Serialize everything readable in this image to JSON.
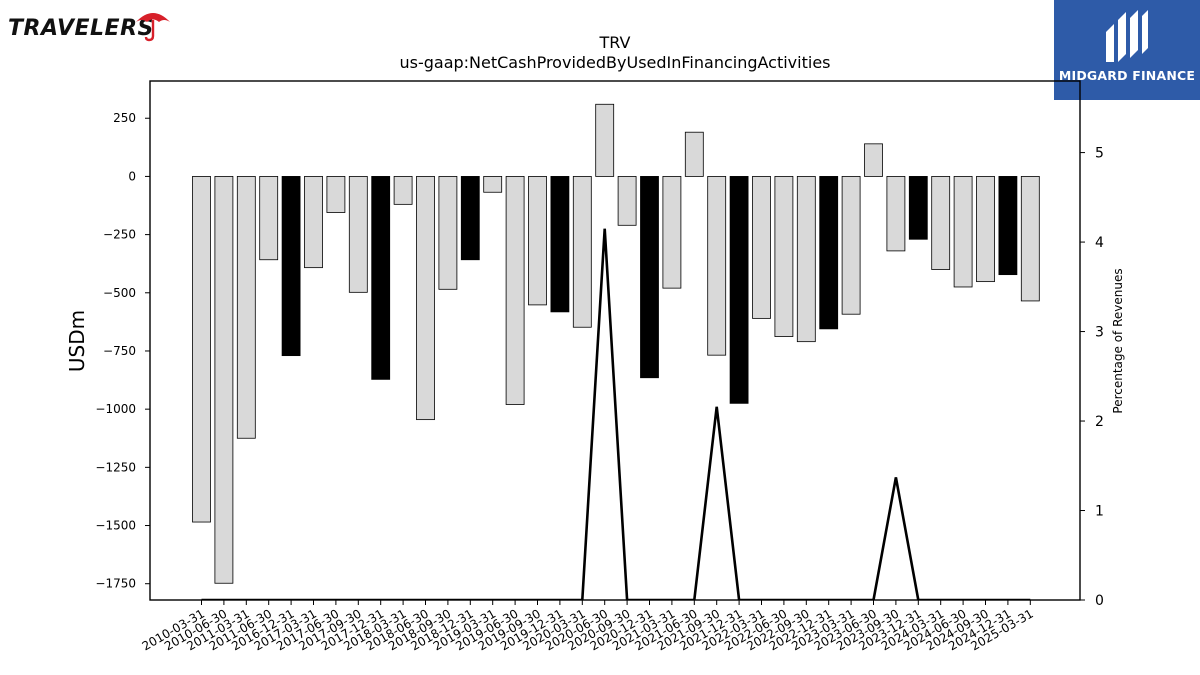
{
  "brand": {
    "left_logo_text": "TRAVELERS",
    "left_logo_icon": "umbrella-icon",
    "right_logo_text": "MIDGARD FINANCE",
    "right_logo_icon": "midgard-monogram-icon",
    "left_logo_accent": "#d7202a",
    "right_logo_bg": "#2e5ba8"
  },
  "chart_data": {
    "type": "bar",
    "title": "TRV",
    "subtitle": "us-gaap:NetCashProvidedByUsedInFinancingActivities",
    "ylabel": "USDm",
    "y2label": "Percentage of Revenues",
    "ylim": [
      -1820,
      410
    ],
    "y2lim": [
      0,
      5.8
    ],
    "yticks": [
      250,
      0,
      -250,
      -500,
      -750,
      -1000,
      -1250,
      -1500,
      -1750
    ],
    "y2ticks": [
      0,
      1,
      2,
      3,
      4,
      5
    ],
    "categories": [
      "2010-03-31",
      "2010-06-30",
      "2011-03-31",
      "2011-06-30",
      "2016-12-31",
      "2017-03-31",
      "2017-06-30",
      "2017-09-30",
      "2017-12-31",
      "2018-03-31",
      "2018-06-30",
      "2018-09-30",
      "2018-12-31",
      "2019-03-31",
      "2019-06-30",
      "2019-09-30",
      "2019-12-31",
      "2020-03-31",
      "2020-06-30",
      "2020-09-30",
      "2020-12-31",
      "2021-03-31",
      "2021-06-30",
      "2021-09-30",
      "2021-12-31",
      "2022-03-31",
      "2022-06-30",
      "2022-09-30",
      "2022-12-31",
      "2023-03-31",
      "2023-06-30",
      "2023-09-30",
      "2023-12-31",
      "2024-03-31",
      "2024-06-30",
      "2024-09-30",
      "2024-12-31",
      "2025-03-31"
    ],
    "series": [
      {
        "type": "bar",
        "values": [
          -1485,
          -1748,
          -1125,
          -358,
          -770,
          -392,
          -155,
          -498,
          -872,
          -120,
          -1045,
          -485,
          -358,
          -68,
          -980,
          -552,
          -582,
          -648,
          310,
          -210,
          -865,
          -480,
          190,
          -768,
          -975,
          -610,
          -688,
          -710,
          -655,
          -592,
          140,
          -320,
          -270,
          -400,
          -475,
          -452,
          -422,
          -535
        ],
        "highlight": [
          false,
          false,
          false,
          false,
          true,
          false,
          false,
          false,
          true,
          false,
          false,
          false,
          true,
          false,
          false,
          false,
          true,
          false,
          false,
          false,
          true,
          false,
          false,
          false,
          true,
          false,
          false,
          false,
          true,
          false,
          false,
          false,
          true,
          false,
          false,
          false,
          true,
          false
        ]
      },
      {
        "type": "line",
        "axis": "right",
        "values": [
          0,
          0,
          0,
          0,
          0,
          0,
          0,
          0,
          0,
          0,
          0,
          0,
          0,
          0,
          0,
          0,
          0,
          0,
          4.15,
          0,
          0,
          0,
          0,
          2.16,
          0,
          0,
          0,
          0,
          0,
          0,
          0,
          1.37,
          0,
          0,
          0,
          0,
          0,
          0
        ]
      }
    ],
    "colors": {
      "bar": "#d9d9d9",
      "highlight_bar": "#000000",
      "bar_edge": "#000000",
      "line": "#000000"
    },
    "grid": false,
    "legend": "none"
  }
}
